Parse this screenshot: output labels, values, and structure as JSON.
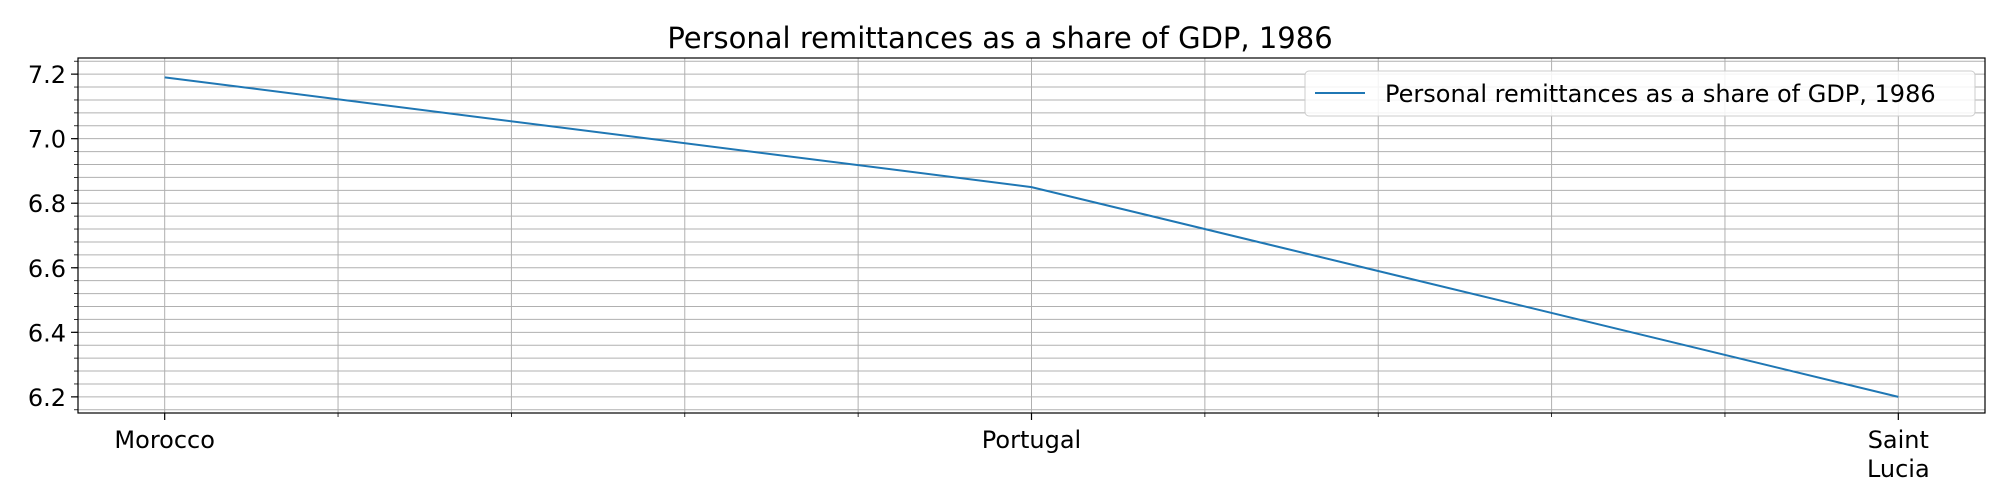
{
  "chart_data": {
    "type": "line",
    "title": "Personal remittances as a share of GDP, 1986",
    "xlabel": "",
    "ylabel": "",
    "categories": [
      "Morocco",
      "Portugal",
      "Saint\nLucia"
    ],
    "series": [
      {
        "name": "Personal remittances as a share of GDP, 1986",
        "values": [
          7.19,
          6.85,
          6.2
        ],
        "color": "#1f77b4"
      }
    ],
    "ylim": [
      6.15,
      7.25
    ],
    "yticks": [
      "6.2",
      "6.4",
      "6.6",
      "6.8",
      "7.0",
      "7.2"
    ],
    "grid": true,
    "minor_grid": true,
    "legend_position": "top-right"
  }
}
